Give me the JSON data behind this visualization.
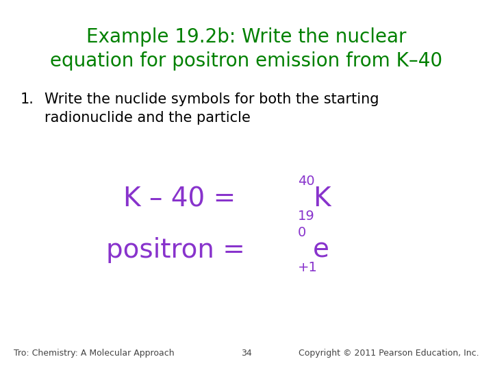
{
  "title_line1": "Example 19.2b: Write the nuclear",
  "title_line2": "equation for positron emission from K–40",
  "title_color": "#008000",
  "body_text_color": "#000000",
  "math_color": "#8833cc",
  "point1_line1": "Write the nuclide symbols for both the starting",
  "point1_line2": "radionuclide and the particle",
  "footer_left": "Tro: Chemistry: A Molecular Approach",
  "footer_center": "34",
  "footer_right": "Copyright © 2011 Pearson Education, Inc.",
  "bg_color": "#ffffff",
  "title_fontsize": 20,
  "body_fontsize": 15,
  "math_fontsize": 28,
  "math_super_sub_fs": 14,
  "footer_fontsize": 9
}
